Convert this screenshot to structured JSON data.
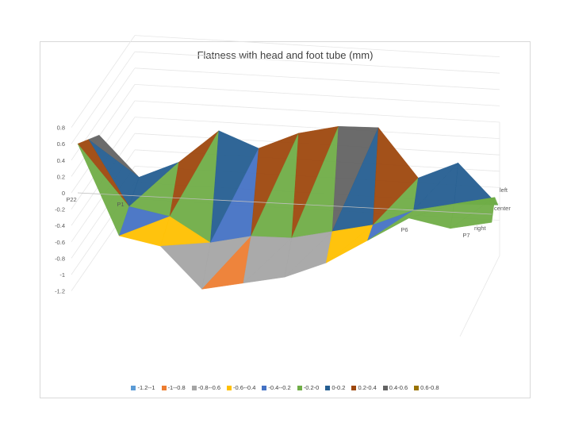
{
  "chart_data": {
    "type": "surface",
    "title": "Flatness with head and foot tube (mm)",
    "z_ticks": [
      "0.8",
      "0.6",
      "0.4",
      "0.2",
      "0",
      "-0.2",
      "-0.4",
      "-0.6",
      "-0.8",
      "-1",
      "-1.2"
    ],
    "zlim": [
      -1.2,
      0.8
    ],
    "x_ticks": [
      "P22",
      "P1",
      "P6",
      "P7"
    ],
    "y_ticks": [
      "left",
      "center",
      "right"
    ],
    "legend_position": "bottom",
    "legend": [
      {
        "label": "-1.2--1",
        "color": "#5b9bd5"
      },
      {
        "label": "-1--0.8",
        "color": "#ed7d31"
      },
      {
        "label": "-0.8--0.6",
        "color": "#a5a5a5"
      },
      {
        "label": "-0.6--0.4",
        "color": "#ffc000"
      },
      {
        "label": "-0.4--0.2",
        "color": "#4472c4"
      },
      {
        "label": "-0.2-0",
        "color": "#70ad47"
      },
      {
        "label": "0-0.2",
        "color": "#255e91"
      },
      {
        "label": "0.2-0.4",
        "color": "#9e480e"
      },
      {
        "label": "0.4-0.6",
        "color": "#636363"
      },
      {
        "label": "0.6-0.8",
        "color": "#997300"
      }
    ],
    "grid": {
      "columns": [
        "P22",
        "P1",
        "",
        "",
        "",
        "",
        "",
        "",
        "P6",
        "",
        "P7"
      ],
      "rows": [
        "right",
        "center",
        "left"
      ],
      "values": [
        [
          0.6,
          -0.5,
          -0.6,
          -1.1,
          -1.0,
          -0.9,
          -0.7,
          -0.4,
          -0.1,
          -0.2,
          -0.1
        ],
        [
          0.6,
          -0.2,
          -0.3,
          -0.6,
          -0.5,
          -0.5,
          -0.4,
          -0.3,
          -0.1,
          0.0,
          0.1
        ],
        [
          0.6,
          0.1,
          0.3,
          0.7,
          0.5,
          0.7,
          0.8,
          0.8,
          0.2,
          0.4,
          -0.1
        ]
      ]
    }
  }
}
